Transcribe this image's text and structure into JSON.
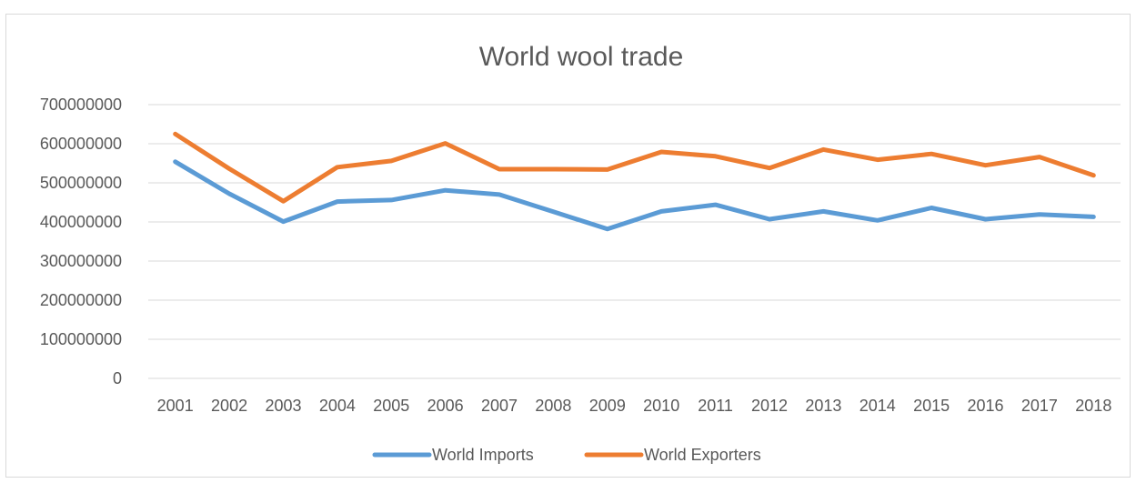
{
  "chart_data": {
    "type": "line",
    "title": "World wool trade",
    "xlabel": "",
    "ylabel": "",
    "x": [
      "2001",
      "2002",
      "2003",
      "2004",
      "2005",
      "2006",
      "2007",
      "2008",
      "2009",
      "2010",
      "2011",
      "2012",
      "2013",
      "2014",
      "2015",
      "2016",
      "2017",
      "2018"
    ],
    "ylim": [
      0,
      700000000
    ],
    "yticks": [
      "0",
      "100000000",
      "200000000",
      "300000000",
      "400000000",
      "500000000",
      "600000000",
      "700000000"
    ],
    "grid": "horizontal",
    "legend_position": "bottom",
    "series": [
      {
        "name": "World Imports",
        "color": "#5B9BD5",
        "values": [
          554000000,
          472000000,
          401000000,
          452000000,
          456000000,
          481000000,
          470000000,
          426000000,
          382000000,
          427000000,
          444000000,
          407000000,
          427000000,
          404000000,
          436000000,
          407000000,
          419000000,
          413000000
        ]
      },
      {
        "name": "World Exporters",
        "color": "#ED7D31",
        "values": [
          625000000,
          536000000,
          453000000,
          540000000,
          556000000,
          601000000,
          535000000,
          535000000,
          534000000,
          579000000,
          568000000,
          538000000,
          585000000,
          559000000,
          574000000,
          545000000,
          566000000,
          519000000
        ]
      }
    ]
  }
}
